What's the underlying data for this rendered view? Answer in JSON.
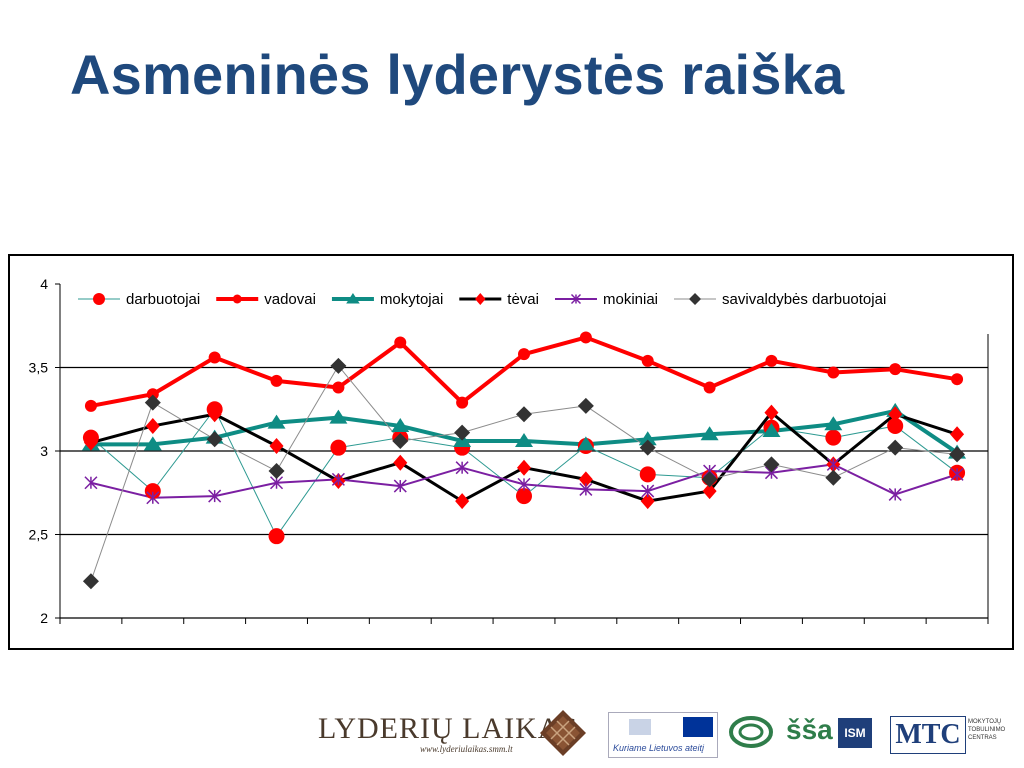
{
  "slide": {
    "title": "Asmeninės lyderystės raiška"
  },
  "chart_data": {
    "type": "line",
    "y_ticks": [
      "4",
      "3,5",
      "3",
      "2,5",
      "2"
    ],
    "ylim": [
      2,
      4
    ],
    "y_step": 0.5,
    "x_count": 15,
    "grid": "horizontal",
    "legend_position": "top",
    "series": [
      {
        "name": "darbuotojai",
        "color": "#ff0000",
        "line_color": "#2e9a92",
        "marker": "circle",
        "line_width": 1,
        "values": [
          3.08,
          2.76,
          3.25,
          2.49,
          3.02,
          3.08,
          3.02,
          2.73,
          3.03,
          2.86,
          2.84,
          3.14,
          3.08,
          3.15,
          2.87
        ]
      },
      {
        "name": "vadovai",
        "color": "#ff0000",
        "line_color": "#ff0000",
        "marker": "circle-small",
        "line_width": 4,
        "values": [
          3.27,
          3.34,
          3.56,
          3.42,
          3.38,
          3.65,
          3.29,
          3.58,
          3.68,
          3.54,
          3.38,
          3.54,
          3.47,
          3.49,
          3.43
        ]
      },
      {
        "name": "mokytojai",
        "color": "#0e8c84",
        "line_color": "#0e8c84",
        "marker": "triangle",
        "line_width": 4,
        "values": [
          3.04,
          3.04,
          3.08,
          3.17,
          3.2,
          3.15,
          3.06,
          3.06,
          3.04,
          3.07,
          3.1,
          3.12,
          3.16,
          3.24,
          2.99
        ]
      },
      {
        "name": "tėvai",
        "color": "#000000",
        "line_color": "#000000",
        "marker": "diamond-red",
        "line_width": 3,
        "values": [
          3.05,
          3.15,
          3.22,
          3.03,
          2.82,
          2.93,
          2.7,
          2.9,
          2.83,
          2.7,
          2.76,
          3.23,
          2.92,
          3.22,
          3.1
        ]
      },
      {
        "name": "mokiniai",
        "color": "#7b1fa2",
        "line_color": "#7b1fa2",
        "marker": "asterisk",
        "line_width": 2,
        "values": [
          2.81,
          2.72,
          2.73,
          2.81,
          2.83,
          2.79,
          2.9,
          2.8,
          2.77,
          2.76,
          2.88,
          2.87,
          2.92,
          2.74,
          2.86
        ]
      },
      {
        "name": "savivaldybės darbuotojai",
        "color": "#333333",
        "line_color": "#8c8c8c",
        "marker": "diamond",
        "line_width": 1,
        "values": [
          2.22,
          3.29,
          3.07,
          2.88,
          3.51,
          3.06,
          3.11,
          3.22,
          3.27,
          3.02,
          2.83,
          2.92,
          2.84,
          3.02,
          2.98
        ]
      }
    ]
  },
  "footer": {
    "lyderiu_logo_text": "LYDERIŲ LAIKAS",
    "lyderiu_url": "www.lyderiulaikas.smm.lt",
    "eu_logo_text": "Kuriame Lietuvos ateitį",
    "ssa_logo_text": "šša",
    "ism_logo_text": "ISM",
    "mtc_logo_text": "MTC",
    "mtc_caption": "MOKYTOJŲ TOBULINIMO CENTRAS"
  }
}
